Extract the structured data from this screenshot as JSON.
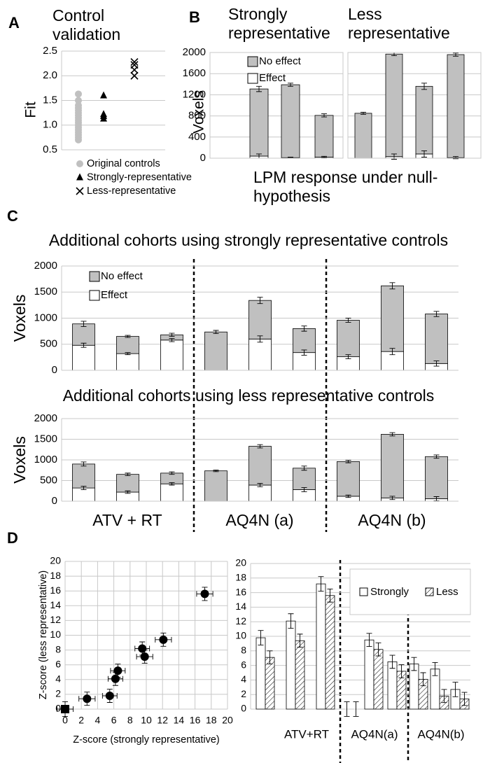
{
  "panel_labels": [
    "A",
    "B",
    "C",
    "D"
  ],
  "chart_data": [
    {
      "type": "scatter",
      "title": "Control validation",
      "y_label": "Fit",
      "ylim": [
        0.5,
        2.5
      ],
      "yticks": [
        0.5,
        {
          "value": 1,
          "label": "1.0"
        },
        1.5,
        {
          "value": 2,
          "label": "2.0"
        },
        2.5
      ],
      "grid": true,
      "series": [
        {
          "name": "Original controls",
          "color": "#c0c0c0",
          "marker": "circle",
          "values": [
            1.63,
            1.5,
            1.4,
            1.35,
            1.3,
            1.25,
            1.2,
            1.15,
            1.1,
            1.05,
            1.0,
            0.95,
            0.9,
            0.85,
            0.8,
            0.75,
            0.7
          ]
        },
        {
          "name": "Strongly-representative",
          "color": "#000000",
          "marker": "triangle",
          "values": [
            1.6,
            1.22,
            1.18,
            1.13
          ]
        },
        {
          "name": "Less-representative",
          "color": "#000000",
          "marker": "x",
          "values": [
            2.28,
            2.22,
            2.12,
            2.0
          ]
        }
      ]
    },
    {
      "type": "bar",
      "stacked": true,
      "title": "Strongly representative",
      "y_label": "Voxels",
      "caption": "LPM response under null-hypothesis",
      "ylim": [
        0,
        2000
      ],
      "yticks": [
        0,
        400,
        800,
        1200,
        1600,
        2000
      ],
      "grid": true,
      "categories": [
        null,
        null,
        null
      ],
      "series": [
        {
          "name": "Effect",
          "color": "#ffffff",
          "values": [
            40,
            10,
            20
          ],
          "errors": [
            40,
            10,
            15
          ]
        },
        {
          "name": "No effect",
          "color": "#c0c0c0",
          "values": [
            1270,
            1380,
            790
          ],
          "errors": [
            50,
            30,
            30
          ]
        }
      ]
    },
    {
      "type": "bar",
      "stacked": true,
      "title": "Less representative",
      "ylim": [
        0,
        2000
      ],
      "grid": true,
      "categories": [
        null,
        null,
        null,
        null
      ],
      "series": [
        {
          "color": "#ffffff",
          "values": [
            0,
            30,
            80,
            10
          ],
          "errors": [
            0,
            50,
            60,
            20
          ]
        },
        {
          "color": "#c0c0c0",
          "values": [
            850,
            1940,
            1280,
            1950
          ],
          "errors": [
            20,
            30,
            60,
            30
          ]
        }
      ]
    },
    {
      "type": "bar",
      "stacked": true,
      "title": "Additional cohorts using strongly representative controls",
      "y_label": "Voxels",
      "ylim": [
        0,
        2000
      ],
      "yticks": [
        0,
        500,
        1000,
        1500,
        2000
      ],
      "grid": true,
      "categories": [
        null,
        null,
        null,
        null,
        null,
        null,
        null,
        null,
        null
      ],
      "series": [
        {
          "name": "Effect",
          "color": "#ffffff",
          "values": [
            480,
            320,
            580,
            0,
            600,
            340,
            260,
            360,
            130
          ],
          "errors": [
            40,
            20,
            30,
            0,
            60,
            50,
            40,
            60,
            50
          ]
        },
        {
          "name": "No effect",
          "color": "#c0c0c0",
          "values": [
            410,
            330,
            100,
            735,
            740,
            460,
            700,
            1260,
            950
          ],
          "errors": [
            50,
            20,
            30,
            30,
            60,
            50,
            40,
            60,
            50
          ]
        }
      ]
    },
    {
      "type": "bar",
      "stacked": true,
      "title": "Additional cohorts using less representative controls",
      "y_label": "Voxels",
      "ylim": [
        0,
        2000
      ],
      "yticks": [
        0,
        500,
        1000,
        1500,
        2000
      ],
      "grid": true,
      "categories": [
        null,
        null,
        null,
        null,
        null,
        null,
        null,
        null,
        null
      ],
      "groups": [
        "ATV + RT",
        "AQ4N (a)",
        "AQ4N (b)"
      ],
      "series": [
        {
          "color": "#ffffff",
          "values": [
            320,
            220,
            420,
            0,
            390,
            280,
            120,
            80,
            60
          ],
          "errors": [
            40,
            30,
            30,
            0,
            40,
            50,
            30,
            40,
            50
          ]
        },
        {
          "color": "#c0c0c0",
          "values": [
            580,
            430,
            260,
            735,
            940,
            520,
            840,
            1540,
            1020
          ],
          "errors": [
            50,
            30,
            30,
            20,
            40,
            50,
            30,
            40,
            40
          ]
        }
      ]
    },
    {
      "type": "scatter",
      "x_label": "Z-score (strongly representative)",
      "y_label": "Z-score (less representative)",
      "xlim": [
        0,
        20
      ],
      "ylim": [
        0,
        20
      ],
      "xticks": [
        0,
        2,
        4,
        6,
        8,
        10,
        12,
        14,
        16,
        18,
        20
      ],
      "yticks": [
        0,
        2,
        4,
        6,
        8,
        10,
        12,
        14,
        16,
        18,
        20
      ],
      "grid": true,
      "series": [
        {
          "color": "#000000",
          "x": [
            9.8,
            12.1,
            17.2,
            0,
            9.5,
            6.5,
            6.2,
            5.5,
            2.7
          ],
          "values": [
            7.1,
            9.4,
            15.6,
            0,
            8.2,
            5.2,
            4.1,
            1.8,
            1.4
          ],
          "xerr": [
            1,
            1,
            1,
            1,
            0.9,
            0.9,
            0.9,
            0.9,
            1
          ],
          "yerr": [
            0.9,
            0.9,
            0.9,
            1,
            0.9,
            0.9,
            0.9,
            0.9,
            0.9
          ],
          "markers": [
            "circle",
            "circle",
            "circle",
            "square",
            "circle",
            "circle",
            "circle",
            "circle",
            "circle"
          ]
        }
      ]
    },
    {
      "type": "bar",
      "ylim": [
        0,
        20
      ],
      "yticks": [
        0,
        2,
        4,
        6,
        8,
        10,
        12,
        14,
        16,
        18,
        20
      ],
      "grid": true,
      "legend": "top-right",
      "categories": [
        null,
        null,
        null,
        null,
        null,
        null,
        null,
        null,
        null
      ],
      "groups": [
        "ATV+RT",
        "AQ4N(a)",
        "AQ4N(b)"
      ],
      "series": [
        {
          "name": "Strongly",
          "color": "#ffffff",
          "values": [
            9.8,
            12.1,
            17.2,
            0,
            9.5,
            6.5,
            6.2,
            5.5,
            2.7
          ],
          "errors": [
            1,
            1,
            1,
            1,
            0.9,
            0.9,
            0.9,
            0.9,
            1
          ]
        },
        {
          "name": "Less",
          "color": "#ffffff",
          "pattern": "hatch",
          "values": [
            7.1,
            9.4,
            15.6,
            0,
            8.2,
            5.2,
            4.1,
            1.8,
            1.4
          ],
          "errors": [
            0.9,
            0.9,
            0.9,
            1,
            0.9,
            0.9,
            0.9,
            0.9,
            0.9
          ]
        }
      ]
    }
  ]
}
